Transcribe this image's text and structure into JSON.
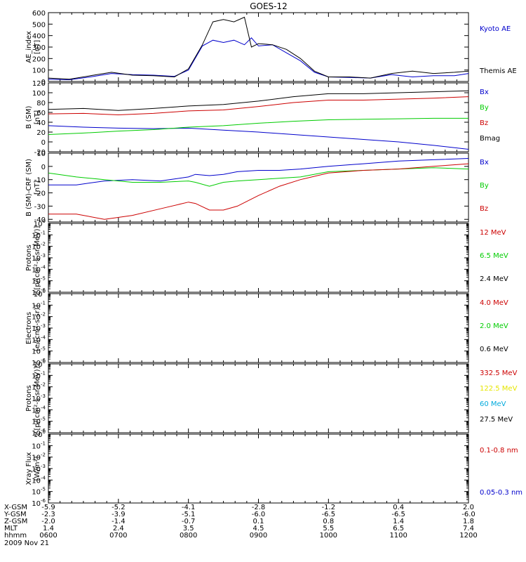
{
  "title": "GOES-12",
  "date_label": "2009 Nov 21",
  "orbit_table": {
    "rows": [
      {
        "label": "X-GSM",
        "values": [
          "-5.9",
          "-5.2",
          "-4.1",
          "-2.8",
          "-1.2",
          "0.4",
          "2.0"
        ]
      },
      {
        "label": "Y-GSM",
        "values": [
          "-2.3",
          "-3.9",
          "-5.1",
          "-6.0",
          "-6.5",
          "-6.5",
          "-6.0"
        ]
      },
      {
        "label": "Z-GSM",
        "values": [
          "-2.0",
          "-1.4",
          "-0.7",
          "0.1",
          "0.8",
          "1.4",
          "1.8"
        ]
      },
      {
        "label": "MLT",
        "values": [
          "1.4",
          "2.4",
          "3.5",
          "4.5",
          "5.5",
          "6.5",
          "7.4"
        ]
      },
      {
        "label": "hhmm",
        "values": [
          "0600",
          "0700",
          "0800",
          "0900",
          "1000",
          "1100",
          "1200"
        ]
      }
    ]
  },
  "colors": {
    "black": "#000000",
    "blue": "#0000cc",
    "red": "#cc0000",
    "green": "#00cc00",
    "yellow": "#e6e600",
    "cyan": "#00aadd"
  },
  "chart_data": [
    {
      "type": "line",
      "ylabel": "AE_index\n[nT]",
      "ylim": [
        0,
        600
      ],
      "yticks": [
        0,
        100,
        200,
        300,
        400,
        500,
        600
      ],
      "ytick_labels": [
        "0",
        "100",
        "200",
        "300",
        "400",
        "500",
        "600"
      ],
      "x_hours": [
        6.0,
        6.3,
        6.6,
        6.9,
        7.2,
        7.5,
        7.8,
        8.0,
        8.2,
        8.35,
        8.5,
        8.65,
        8.8,
        8.9,
        9.0,
        9.2,
        9.4,
        9.6,
        9.8,
        10.0,
        10.3,
        10.6,
        10.9,
        11.2,
        11.5,
        11.8,
        12.0
      ],
      "series": [
        {
          "name": "Kyoto AE",
          "color": "#0000cc",
          "legend_text_color": "#0000cc",
          "values": [
            20,
            15,
            40,
            70,
            60,
            55,
            45,
            100,
            310,
            360,
            340,
            360,
            320,
            380,
            310,
            320,
            250,
            180,
            80,
            40,
            35,
            30,
            60,
            40,
            50,
            50,
            70
          ]
        },
        {
          "name": "Themis AE",
          "color": "#000000",
          "legend_text_color": "#000000",
          "values": [
            30,
            20,
            50,
            80,
            55,
            50,
            40,
            110,
            320,
            520,
            540,
            520,
            560,
            300,
            330,
            320,
            280,
            200,
            90,
            40,
            40,
            30,
            70,
            90,
            70,
            80,
            90
          ]
        }
      ]
    },
    {
      "type": "line",
      "ylabel": "B (SM)\n[nT]",
      "ylim": [
        -20,
        120
      ],
      "yticks": [
        -20,
        0,
        20,
        40,
        60,
        80,
        100,
        120
      ],
      "ytick_labels": [
        "-20",
        "0",
        "20",
        "40",
        "60",
        "80",
        "100",
        "120"
      ],
      "x_hours": [
        6.0,
        6.5,
        7.0,
        7.5,
        8.0,
        8.5,
        9.0,
        9.5,
        10.0,
        10.5,
        11.0,
        11.5,
        12.0
      ],
      "series": [
        {
          "name": "Bx",
          "color": "#0000cc",
          "legend_text_color": "#0000cc",
          "values": [
            33,
            30,
            28,
            27,
            28,
            24,
            20,
            15,
            10,
            5,
            0,
            -7,
            -15
          ]
        },
        {
          "name": "By",
          "color": "#00cc00",
          "legend_text_color": "#00cc00",
          "values": [
            15,
            18,
            22,
            25,
            30,
            33,
            38,
            42,
            45,
            46,
            47,
            48,
            48
          ]
        },
        {
          "name": "Bz",
          "color": "#cc0000",
          "legend_text_color": "#cc0000",
          "values": [
            57,
            58,
            55,
            58,
            63,
            65,
            72,
            80,
            85,
            85,
            87,
            89,
            92
          ]
        },
        {
          "name": "Bmag",
          "color": "#000000",
          "legend_text_color": "#000000",
          "values": [
            66,
            68,
            64,
            68,
            73,
            76,
            83,
            92,
            98,
            98,
            100,
            102,
            104
          ]
        }
      ]
    },
    {
      "type": "line",
      "ylabel": "B (SM)-CRF (SM)\n[nT]",
      "ylim": [
        -42,
        10
      ],
      "yticks": [
        -40,
        -30,
        -20,
        -10,
        0,
        10
      ],
      "ytick_labels": [
        "-40",
        "-30",
        "-20",
        "-10",
        "0",
        "10"
      ],
      "x_hours": [
        6.0,
        6.4,
        6.8,
        7.2,
        7.6,
        8.0,
        8.1,
        8.3,
        8.5,
        8.7,
        9.0,
        9.3,
        9.6,
        10.0,
        10.5,
        11.0,
        11.5,
        12.0
      ],
      "series": [
        {
          "name": "Bx",
          "color": "#0000cc",
          "legend_text_color": "#0000cc",
          "values": [
            -14,
            -14,
            -11,
            -10,
            -11,
            -8,
            -6,
            -7,
            -6,
            -4,
            -3,
            -3,
            -2,
            0,
            2,
            4,
            5,
            6
          ]
        },
        {
          "name": "By",
          "color": "#00cc00",
          "legend_text_color": "#00cc00",
          "values": [
            -5,
            -8,
            -10,
            -12,
            -12,
            -11,
            -12,
            -15,
            -12,
            -11,
            -10,
            -9,
            -8,
            -4,
            -3,
            -2,
            -1,
            -2
          ]
        },
        {
          "name": "Bz",
          "color": "#cc0000",
          "legend_text_color": "#cc0000",
          "values": [
            -36,
            -36,
            -40,
            -37,
            -32,
            -27,
            -28,
            -33,
            -33,
            -30,
            -22,
            -15,
            -10,
            -5,
            -3,
            -2,
            0,
            2
          ]
        }
      ]
    },
    {
      "type": "line",
      "ylabel": "Protons\n[p/(cm²-s-sr-MeV)]",
      "log": true,
      "ylim_exp": [
        -6,
        0
      ],
      "yticks_exp": [
        -6,
        -5,
        -4,
        -3,
        -2,
        -1,
        0
      ],
      "series": [
        {
          "name": "12 MeV",
          "color": "#cc0000",
          "legend_text_color": "#cc0000",
          "values": []
        },
        {
          "name": "6.5 MeV",
          "color": "#00cc00",
          "legend_text_color": "#00cc00",
          "values": []
        },
        {
          "name": "2.4 MeV",
          "color": "#000000",
          "legend_text_color": "#000000",
          "values": []
        }
      ]
    },
    {
      "type": "line",
      "ylabel": "Electrons\n[e/(cm²-s-sr)]",
      "log": true,
      "ylim_exp": [
        -6,
        0
      ],
      "yticks_exp": [
        -6,
        -5,
        -4,
        -3,
        -2,
        -1,
        0
      ],
      "series": [
        {
          "name": "4.0 MeV",
          "color": "#cc0000",
          "legend_text_color": "#cc0000",
          "values": []
        },
        {
          "name": "2.0 MeV",
          "color": "#00cc00",
          "legend_text_color": "#00cc00",
          "values": []
        },
        {
          "name": "0.6 MeV",
          "color": "#000000",
          "legend_text_color": "#000000",
          "values": []
        }
      ]
    },
    {
      "type": "line",
      "ylabel": "Protons\n[p/(cm²-s-sr-MeV)]",
      "log": true,
      "ylim_exp": [
        -6,
        0
      ],
      "yticks_exp": [
        -6,
        -5,
        -4,
        -3,
        -2,
        -1,
        0
      ],
      "series": [
        {
          "name": "332.5 MeV",
          "color": "#cc0000",
          "legend_text_color": "#cc0000",
          "values": []
        },
        {
          "name": "122.5 MeV",
          "color": "#e6e600",
          "legend_text_color": "#e6e600",
          "values": []
        },
        {
          "name": "60 MeV",
          "color": "#00aadd",
          "legend_text_color": "#00aadd",
          "values": []
        },
        {
          "name": "27.5 MeV",
          "color": "#000000",
          "legend_text_color": "#000000",
          "values": []
        }
      ]
    },
    {
      "type": "line",
      "ylabel": "Xray Flux\n[W/m²]",
      "log": true,
      "ylim_exp": [
        -6,
        0
      ],
      "yticks_exp": [
        -6,
        -5,
        -4,
        -3,
        -2,
        -1,
        0
      ],
      "series": [
        {
          "name": "0.1-0.8 nm",
          "color": "#cc0000",
          "legend_text_color": "#cc0000",
          "values": []
        },
        {
          "name": "0.05-0.3 nm",
          "color": "#0000cc",
          "legend_text_color": "#0000cc",
          "values": []
        }
      ]
    }
  ]
}
